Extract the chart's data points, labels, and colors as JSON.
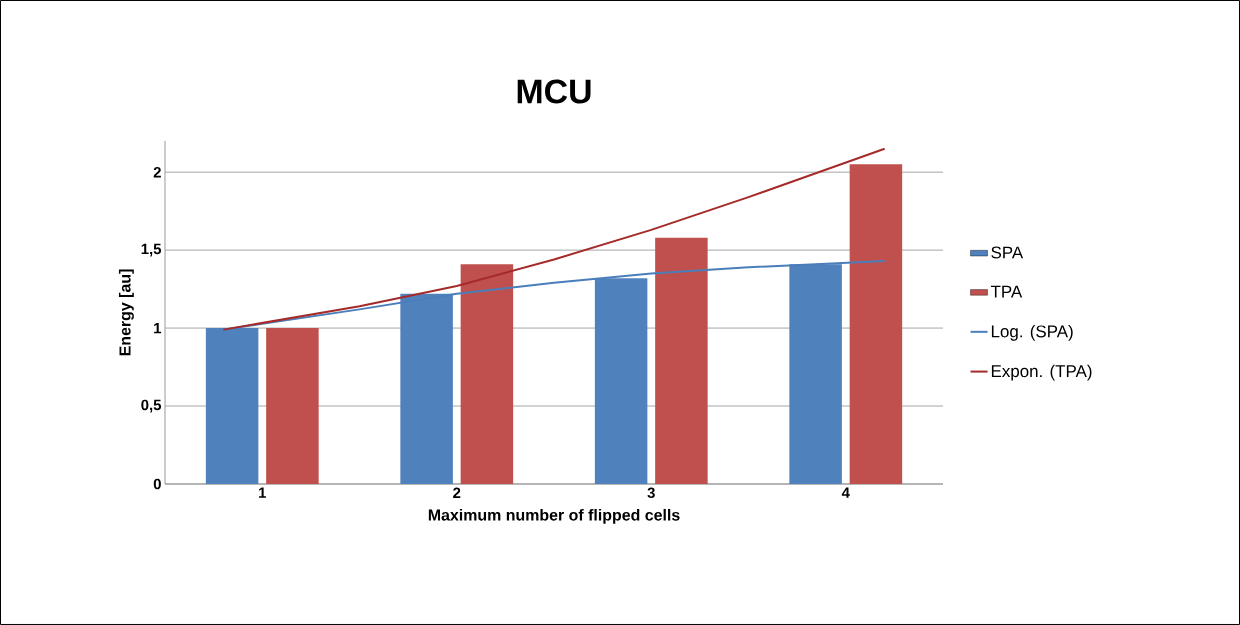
{
  "chart_data": {
    "type": "bar",
    "title": "MCU",
    "xlabel": "Maximum number of flipped cells",
    "ylabel": "Energy [au]",
    "x": [
      1,
      2,
      3,
      4
    ],
    "xlim": [
      0.5,
      4.5
    ],
    "xticks": [
      1,
      2,
      3,
      4
    ],
    "ylim": [
      0,
      2.2
    ],
    "yticks": [
      0,
      {
        "value": 0.5,
        "label": "0,5"
      },
      1,
      {
        "value": 1.5,
        "label": "1,5"
      },
      2
    ],
    "grid": "y",
    "legend": "right",
    "marker": "none",
    "series": [
      {
        "name": "SPA",
        "color": "#4f81bd",
        "values": [
          1,
          1.22,
          1.32,
          1.41
        ]
      },
      {
        "name": "TPA",
        "color": "#c0504d",
        "values": [
          1,
          1.41,
          1.58,
          2.05
        ]
      },
      {
        "name": "Log. (SPA)",
        "type": "line",
        "color": "#4a7ebb",
        "x": [
          0.8,
          1.5,
          2,
          2.5,
          3,
          3.5,
          4.2
        ],
        "values": [
          0.99,
          1.12,
          1.22,
          1.29,
          1.35,
          1.39,
          1.43
        ]
      },
      {
        "name": "Expon. (TPA)",
        "type": "line",
        "color": "#a52a2a",
        "x": [
          0.8,
          1.5,
          2,
          2.5,
          3,
          3.5,
          4.2
        ],
        "values": [
          0.99,
          1.14,
          1.27,
          1.44,
          1.63,
          1.84,
          2.15
        ]
      }
    ]
  }
}
